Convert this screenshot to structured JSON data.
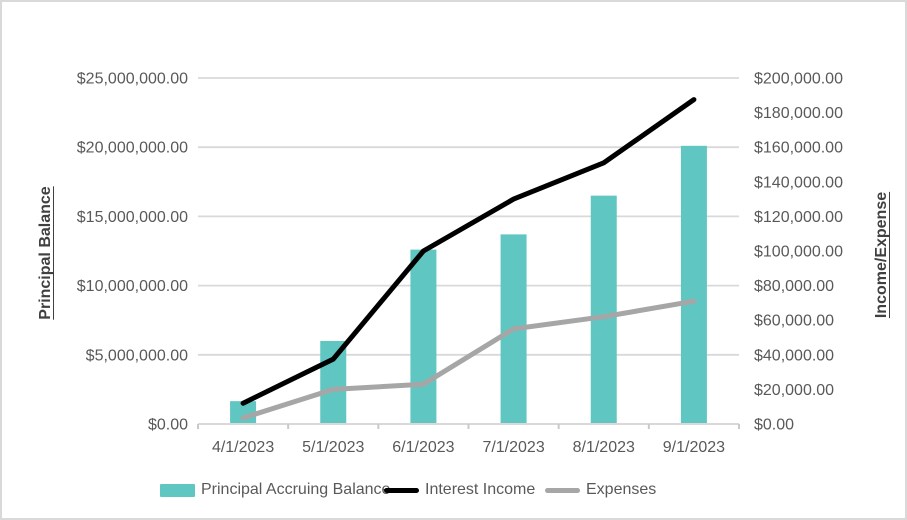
{
  "chart_data": {
    "type": "combo-bar-line",
    "title": "",
    "categories": [
      "4/1/2023",
      "5/1/2023",
      "6/1/2023",
      "7/1/2023",
      "8/1/2023",
      "9/1/2023"
    ],
    "series": [
      {
        "name": "Principal Accruing Balance",
        "type": "bar",
        "axis": "left",
        "color": "#60C6C2",
        "values": [
          1650000,
          6000000,
          12600000,
          13700000,
          16500000,
          20100000
        ]
      },
      {
        "name": "Interest Income",
        "type": "line",
        "axis": "right",
        "color": "#000000",
        "values": [
          12000,
          37500,
          100000,
          130000,
          151000,
          187500
        ]
      },
      {
        "name": "Expenses",
        "type": "line",
        "axis": "right",
        "color": "#A6A6A6",
        "values": [
          3500,
          20000,
          23000,
          55000,
          62000,
          71000
        ]
      }
    ],
    "left_axis": {
      "title": "Principal Balance",
      "min": 0,
      "max": 25000000,
      "step": 5000000,
      "tick_labels": [
        "$25,000,000.00",
        "$20,000,000.00",
        "$15,000,000.00",
        "$10,000,000.00",
        "$5,000,000.00",
        "$0.00"
      ]
    },
    "right_axis": {
      "title": "Income/Expense",
      "min": 0,
      "max": 200000,
      "step": 20000,
      "tick_labels": [
        "$200,000.00",
        "$180,000.00",
        "$160,000.00",
        "$140,000.00",
        "$120,000.00",
        "$100,000.00",
        "$80,000.00",
        "$60,000.00",
        "$40,000.00",
        "$20,000.00",
        "$0.00"
      ]
    },
    "grid": true,
    "legend_position": "bottom"
  },
  "colors": {
    "gridline": "#D9D9D9",
    "axis_line": "#D9D9D9",
    "tick_mark": "#C9C9C9",
    "tick_label": "#595959",
    "axis_title": "#404040",
    "frame_border": "#D9D9D9"
  }
}
